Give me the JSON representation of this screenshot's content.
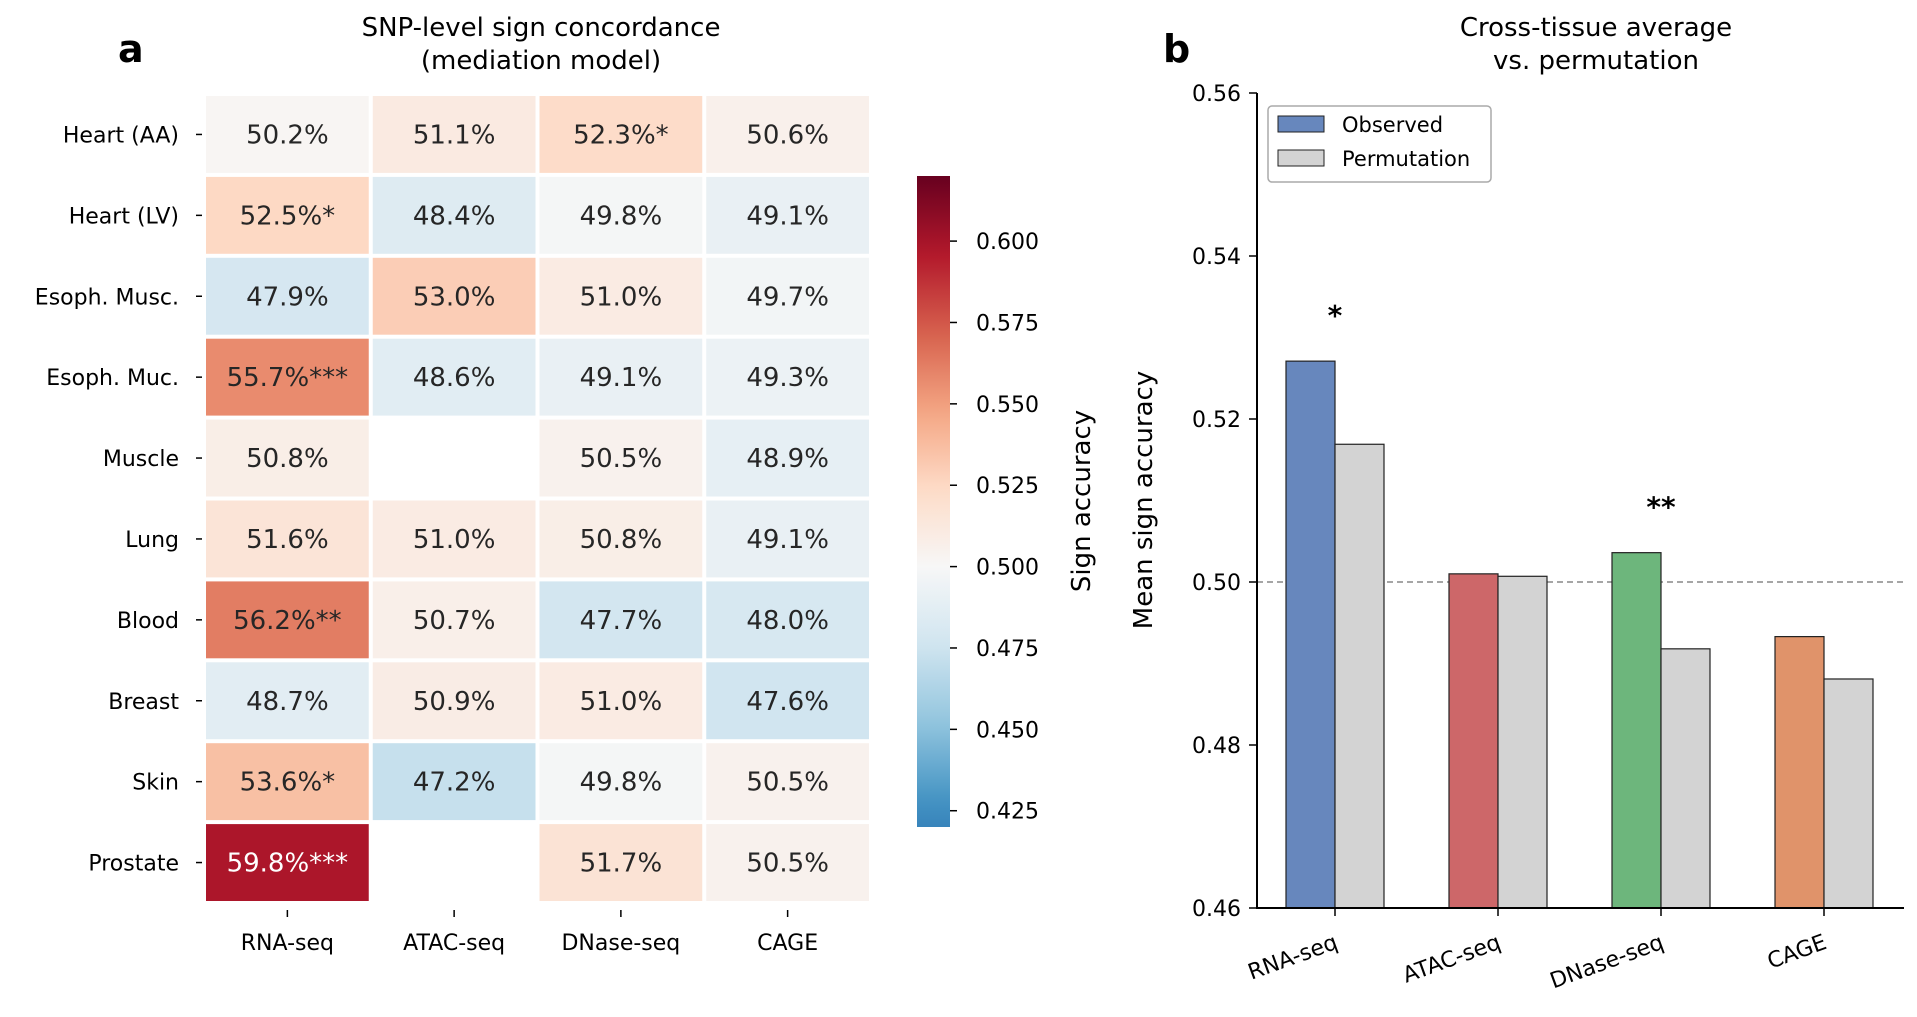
{
  "chart_data": [
    {
      "panel_label": "a",
      "type": "heatmap",
      "title": "SNP-level sign concordance\n(mediation model)",
      "title_lines": [
        "SNP-level sign concordance",
        "(mediation model)"
      ],
      "rows": [
        "Heart (AA)",
        "Heart (LV)",
        "Esoph. Musc.",
        "Esoph. Muc.",
        "Muscle",
        "Lung",
        "Blood",
        "Breast",
        "Skin",
        "Prostate"
      ],
      "columns": [
        "RNA-seq",
        "ATAC-seq",
        "DNase-seq",
        "CAGE"
      ],
      "values": [
        [
          0.502,
          0.511,
          0.523,
          0.506
        ],
        [
          0.525,
          0.484,
          0.498,
          0.491
        ],
        [
          0.479,
          0.53,
          0.51,
          0.497
        ],
        [
          0.557,
          0.486,
          0.491,
          0.493
        ],
        [
          0.508,
          null,
          0.505,
          0.489
        ],
        [
          0.516,
          0.51,
          0.508,
          0.491
        ],
        [
          0.562,
          0.507,
          0.477,
          0.48
        ],
        [
          0.487,
          0.509,
          0.51,
          0.476
        ],
        [
          0.536,
          0.472,
          0.498,
          0.505
        ],
        [
          0.598,
          null,
          0.517,
          0.505
        ]
      ],
      "annotations": [
        [
          "50.2%",
          "51.1%",
          "52.3%*",
          "50.6%"
        ],
        [
          "52.5%*",
          "48.4%",
          "49.8%",
          "49.1%"
        ],
        [
          "47.9%",
          "53.0%",
          "51.0%",
          "49.7%"
        ],
        [
          "55.7%***",
          "48.6%",
          "49.1%",
          "49.3%"
        ],
        [
          "50.8%",
          "",
          "50.5%",
          "48.9%"
        ],
        [
          "51.6%",
          "51.0%",
          "50.8%",
          "49.1%"
        ],
        [
          "56.2%**",
          "50.7%",
          "47.7%",
          "48.0%"
        ],
        [
          "48.7%",
          "50.9%",
          "51.0%",
          "47.6%"
        ],
        [
          "53.6%*",
          "47.2%",
          "49.8%",
          "50.5%"
        ],
        [
          "59.8%***",
          "",
          "51.7%",
          "50.5%"
        ]
      ],
      "colormap": "RdBu_r",
      "center": 0.5,
      "vmin": 0.42,
      "vmax": 0.62,
      "colorbar": {
        "label": "Sign accuracy",
        "ticks": [
          0.425,
          0.45,
          0.475,
          0.5,
          0.525,
          0.55,
          0.575,
          0.6
        ],
        "tick_labels": [
          "0.425",
          "0.450",
          "0.475",
          "0.500",
          "0.525",
          "0.550",
          "0.575",
          "0.600"
        ]
      }
    },
    {
      "panel_label": "b",
      "type": "bar",
      "title": "Cross-tissue average\nvs. permutation",
      "title_lines": [
        "Cross-tissue average",
        "vs. permutation"
      ],
      "categories": [
        "RNA-seq",
        "ATAC-seq",
        "DNase-seq",
        "CAGE"
      ],
      "series": [
        {
          "name": "Observed",
          "values": [
            0.5271,
            0.501,
            0.5036,
            0.4933
          ],
          "colors": [
            "#6787bd",
            "#cd6769",
            "#6db67c",
            "#e0936a"
          ]
        },
        {
          "name": "Permutation",
          "values": [
            0.5169,
            0.5007,
            0.4918,
            0.4881
          ],
          "colors": [
            "#d3d3d3",
            "#d3d3d3",
            "#d3d3d3",
            "#d3d3d3"
          ]
        }
      ],
      "significance": [
        "*",
        "",
        "**",
        ""
      ],
      "reference_line": {
        "y": 0.5,
        "style": "dashed",
        "color": "#888888"
      },
      "xlabel": "",
      "ylabel": "Mean sign accuracy",
      "ylim": [
        0.46,
        0.56
      ],
      "yticks": [
        0.46,
        0.48,
        0.5,
        0.52,
        0.54,
        0.56
      ],
      "ytick_labels": [
        "0.46",
        "0.48",
        "0.50",
        "0.52",
        "0.54",
        "0.56"
      ],
      "legend": {
        "placement": "top-left",
        "entries": [
          "Observed",
          "Permutation"
        ],
        "swatch_colors": [
          "#6787bd",
          "#d3d3d3"
        ]
      },
      "grid": false
    }
  ]
}
